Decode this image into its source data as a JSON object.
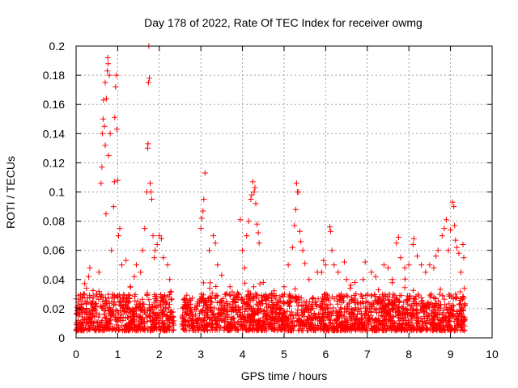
{
  "chart_data": {
    "type": "scatter",
    "title": "Day 178 of 2022, Rate Of TEC Index for receiver owmg",
    "xlabel": "GPS time / hours",
    "ylabel": "ROTI / TECUs",
    "xlim": [
      0,
      10
    ],
    "ylim": [
      0,
      0.2
    ],
    "x_ticks": [
      "0",
      "1",
      "2",
      "3",
      "4",
      "5",
      "6",
      "7",
      "8",
      "9",
      "10"
    ],
    "y_ticks": [
      "0",
      "0.02",
      "0.04",
      "0.06",
      "0.08",
      "0.1",
      "0.12",
      "0.14",
      "0.16",
      "0.18",
      "0.2"
    ],
    "grid": true,
    "marker": "+",
    "color": "#ff0000",
    "x_range_of_data": [
      0.0,
      9.35
    ],
    "background_level_typical": [
      0.005,
      0.025
    ],
    "series": [
      {
        "name": "ROTI",
        "points": [
          [
            0.05,
            0.012
          ],
          [
            0.1,
            0.019
          ],
          [
            0.15,
            0.028
          ],
          [
            0.2,
            0.03
          ],
          [
            0.25,
            0.034
          ],
          [
            0.3,
            0.042
          ],
          [
            0.33,
            0.048
          ],
          [
            0.4,
            0.025
          ],
          [
            0.5,
            0.03
          ],
          [
            0.55,
            0.045
          ],
          [
            0.6,
            0.106
          ],
          [
            0.62,
            0.117
          ],
          [
            0.63,
            0.14
          ],
          [
            0.65,
            0.15
          ],
          [
            0.66,
            0.163
          ],
          [
            0.68,
            0.145
          ],
          [
            0.7,
            0.132
          ],
          [
            0.7,
            0.175
          ],
          [
            0.72,
            0.085
          ],
          [
            0.73,
            0.164
          ],
          [
            0.75,
            0.183
          ],
          [
            0.76,
            0.192
          ],
          [
            0.77,
            0.188
          ],
          [
            0.78,
            0.125
          ],
          [
            0.8,
            0.18
          ],
          [
            0.82,
            0.14
          ],
          [
            0.85,
            0.06
          ],
          [
            0.9,
            0.09
          ],
          [
            0.92,
            0.107
          ],
          [
            0.93,
            0.151
          ],
          [
            0.95,
            0.172
          ],
          [
            0.97,
            0.18
          ],
          [
            0.98,
            0.143
          ],
          [
            1.0,
            0.108
          ],
          [
            1.02,
            0.07
          ],
          [
            1.05,
            0.075
          ],
          [
            1.1,
            0.05
          ],
          [
            1.2,
            0.053
          ],
          [
            1.3,
            0.035
          ],
          [
            1.4,
            0.042
          ],
          [
            1.45,
            0.05
          ],
          [
            1.55,
            0.045
          ],
          [
            1.6,
            0.06
          ],
          [
            1.65,
            0.075
          ],
          [
            1.7,
            0.1
          ],
          [
            1.72,
            0.13
          ],
          [
            1.73,
            0.133
          ],
          [
            1.74,
            0.175
          ],
          [
            1.75,
            0.2
          ],
          [
            1.76,
            0.178
          ],
          [
            1.78,
            0.106
          ],
          [
            1.8,
            0.1
          ],
          [
            1.82,
            0.095
          ],
          [
            1.85,
            0.07
          ],
          [
            1.88,
            0.055
          ],
          [
            1.9,
            0.06
          ],
          [
            1.95,
            0.064
          ],
          [
            2.0,
            0.07
          ],
          [
            2.05,
            0.068
          ],
          [
            2.1,
            0.055
          ],
          [
            2.2,
            0.05
          ],
          [
            2.25,
            0.04
          ],
          [
            3.0,
            0.075
          ],
          [
            3.02,
            0.082
          ],
          [
            3.05,
            0.087
          ],
          [
            3.07,
            0.095
          ],
          [
            3.1,
            0.113
          ],
          [
            3.2,
            0.06
          ],
          [
            3.3,
            0.07
          ],
          [
            3.35,
            0.065
          ],
          [
            3.4,
            0.05
          ],
          [
            3.5,
            0.043
          ],
          [
            3.7,
            0.035
          ],
          [
            3.9,
            0.03
          ],
          [
            3.95,
            0.081
          ],
          [
            4.0,
            0.06
          ],
          [
            4.05,
            0.048
          ],
          [
            4.1,
            0.07
          ],
          [
            4.15,
            0.08
          ],
          [
            4.2,
            0.095
          ],
          [
            4.22,
            0.098
          ],
          [
            4.25,
            0.107
          ],
          [
            4.28,
            0.1
          ],
          [
            4.3,
            0.103
          ],
          [
            4.32,
            0.092
          ],
          [
            4.35,
            0.078
          ],
          [
            4.38,
            0.072
          ],
          [
            4.4,
            0.065
          ],
          [
            4.5,
            0.038
          ],
          [
            4.7,
            0.03
          ],
          [
            5.0,
            0.035
          ],
          [
            5.1,
            0.05
          ],
          [
            5.2,
            0.062
          ],
          [
            5.25,
            0.077
          ],
          [
            5.28,
            0.088
          ],
          [
            5.3,
            0.106
          ],
          [
            5.32,
            0.1
          ],
          [
            5.35,
            0.1
          ],
          [
            5.38,
            0.073
          ],
          [
            5.4,
            0.066
          ],
          [
            5.45,
            0.06
          ],
          [
            5.5,
            0.051
          ],
          [
            5.6,
            0.04
          ],
          [
            5.8,
            0.045
          ],
          [
            5.9,
            0.045
          ],
          [
            5.95,
            0.053
          ],
          [
            6.0,
            0.05
          ],
          [
            6.1,
            0.076
          ],
          [
            6.12,
            0.073
          ],
          [
            6.15,
            0.06
          ],
          [
            6.2,
            0.05
          ],
          [
            6.3,
            0.045
          ],
          [
            6.45,
            0.052
          ],
          [
            6.5,
            0.04
          ],
          [
            6.7,
            0.038
          ],
          [
            6.9,
            0.04
          ],
          [
            6.95,
            0.052
          ],
          [
            7.1,
            0.045
          ],
          [
            7.2,
            0.042
          ],
          [
            7.4,
            0.05
          ],
          [
            7.5,
            0.048
          ],
          [
            7.6,
            0.04
          ],
          [
            7.7,
            0.065
          ],
          [
            7.75,
            0.069
          ],
          [
            7.8,
            0.055
          ],
          [
            7.9,
            0.048
          ],
          [
            8.0,
            0.05
          ],
          [
            8.1,
            0.064
          ],
          [
            8.12,
            0.068
          ],
          [
            8.2,
            0.056
          ],
          [
            8.3,
            0.05
          ],
          [
            8.4,
            0.045
          ],
          [
            8.5,
            0.05
          ],
          [
            8.6,
            0.048
          ],
          [
            8.65,
            0.056
          ],
          [
            8.7,
            0.06
          ],
          [
            8.8,
            0.07
          ],
          [
            8.85,
            0.075
          ],
          [
            8.9,
            0.081
          ],
          [
            8.95,
            0.06
          ],
          [
            9.0,
            0.074
          ],
          [
            9.05,
            0.093
          ],
          [
            9.08,
            0.09
          ],
          [
            9.1,
            0.077
          ],
          [
            9.12,
            0.067
          ],
          [
            9.15,
            0.062
          ],
          [
            9.2,
            0.058
          ],
          [
            9.25,
            0.045
          ],
          [
            9.3,
            0.064
          ],
          [
            9.32,
            0.055
          ],
          [
            9.33,
            0.034
          ],
          [
            9.35,
            0.022
          ]
        ]
      }
    ]
  }
}
